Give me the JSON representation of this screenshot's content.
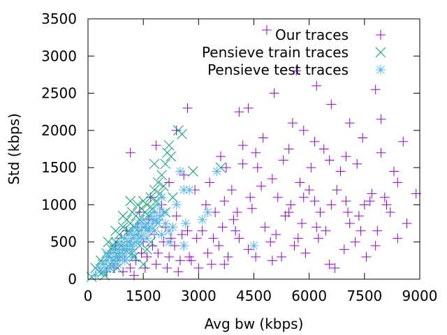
{
  "chart_data": {
    "type": "scatter",
    "xlabel": "Avg bw (kbps)",
    "ylabel": "Std (kbps)",
    "xlim": [
      0,
      9000
    ],
    "ylim": [
      0,
      3500
    ],
    "xticks": [
      0,
      1500,
      3000,
      4500,
      6000,
      7500,
      9000
    ],
    "yticks": [
      0,
      500,
      1000,
      1500,
      2000,
      2500,
      3000,
      3500
    ],
    "xtick_labels": [
      "0",
      "1500",
      "3000",
      "4500",
      "6000",
      "7500",
      "9000"
    ],
    "ytick_labels": [
      "0",
      "500",
      "1000",
      "1500",
      "2000",
      "2500",
      "3000",
      "3500"
    ],
    "grid": false,
    "legend_position": "top-right",
    "series": [
      {
        "name": "Our traces",
        "color": "#9400d3",
        "marker": "plus",
        "points": [
          [
            4850,
            3350
          ],
          [
            5650,
            2800
          ],
          [
            7800,
            2550
          ],
          [
            6200,
            2600
          ],
          [
            5050,
            2500
          ],
          [
            2700,
            2300
          ],
          [
            4100,
            2250
          ],
          [
            4350,
            2300
          ],
          [
            6600,
            2350
          ],
          [
            5550,
            2100
          ],
          [
            5850,
            2000
          ],
          [
            7100,
            2100
          ],
          [
            7950,
            2150
          ],
          [
            8550,
            1850
          ],
          [
            1150,
            1700
          ],
          [
            1850,
            1800
          ],
          [
            2400,
            2000
          ],
          [
            3750,
            1500
          ],
          [
            4200,
            1550
          ],
          [
            4550,
            1700
          ],
          [
            4750,
            1900
          ],
          [
            5300,
            1600
          ],
          [
            6050,
            1500
          ],
          [
            6400,
            1750
          ],
          [
            6850,
            1450
          ],
          [
            7300,
            1550
          ],
          [
            8300,
            1450
          ],
          [
            8900,
            1150
          ],
          [
            3200,
            1000
          ],
          [
            3450,
            900
          ],
          [
            3700,
            1050
          ],
          [
            3950,
            800
          ],
          [
            4450,
            950
          ],
          [
            4800,
            700
          ],
          [
            5150,
            1100
          ],
          [
            5450,
            900
          ],
          [
            5800,
            750
          ],
          [
            6150,
            1050
          ],
          [
            6450,
            650
          ],
          [
            6750,
            1200
          ],
          [
            7050,
            900
          ],
          [
            7350,
            850
          ],
          [
            7650,
            1050
          ],
          [
            7850,
            650
          ],
          [
            8050,
            1100
          ],
          [
            8400,
            550
          ],
          [
            8650,
            750
          ],
          [
            2950,
            550
          ],
          [
            3250,
            350
          ],
          [
            3550,
            450
          ],
          [
            3800,
            300
          ],
          [
            4100,
            550
          ],
          [
            4350,
            400
          ],
          [
            4950,
            500
          ],
          [
            5250,
            300
          ],
          [
            5600,
            450
          ],
          [
            5900,
            350
          ],
          [
            6250,
            550
          ],
          [
            6550,
            200
          ],
          [
            6950,
            400
          ],
          [
            7250,
            500
          ],
          [
            7550,
            300
          ],
          [
            2700,
            650
          ],
          [
            2600,
            450
          ],
          [
            2800,
            250
          ],
          [
            3000,
            150
          ],
          [
            3350,
            200
          ],
          [
            3650,
            700
          ],
          [
            4000,
            650
          ],
          [
            4550,
            300
          ],
          [
            5000,
            250
          ],
          [
            5350,
            850
          ],
          [
            5700,
            550
          ],
          [
            6000,
            1200
          ],
          [
            6300,
            900
          ],
          [
            6700,
            150
          ],
          [
            7100,
            750
          ],
          [
            7500,
            1000
          ],
          [
            7800,
            450
          ],
          [
            8200,
            900
          ],
          [
            600,
            350
          ],
          [
            750,
            450
          ],
          [
            900,
            550
          ],
          [
            1050,
            650
          ],
          [
            1200,
            400
          ],
          [
            1350,
            700
          ],
          [
            1500,
            500
          ],
          [
            1650,
            800
          ],
          [
            1800,
            600
          ],
          [
            1950,
            900
          ],
          [
            2100,
            700
          ],
          [
            2250,
            550
          ],
          [
            2400,
            850
          ],
          [
            2550,
            600
          ],
          [
            800,
            250
          ],
          [
            1000,
            300
          ],
          [
            1150,
            150
          ],
          [
            1300,
            250
          ],
          [
            1450,
            350
          ],
          [
            1600,
            300
          ],
          [
            1750,
            450
          ],
          [
            1900,
            350
          ],
          [
            2050,
            500
          ],
          [
            2200,
            300
          ],
          [
            2350,
            450
          ],
          [
            2500,
            250
          ],
          [
            1400,
            900
          ],
          [
            1700,
            1100
          ],
          [
            2000,
            1000
          ],
          [
            2200,
            1300
          ],
          [
            2600,
            1400
          ],
          [
            2900,
            1200
          ],
          [
            3300,
            1300
          ],
          [
            3600,
            1650
          ],
          [
            3900,
            1200
          ],
          [
            4200,
            1800
          ],
          [
            4600,
            1500
          ],
          [
            5000,
            1350
          ],
          [
            5450,
            1750
          ],
          [
            5750,
            1300
          ],
          [
            6150,
            1850
          ],
          [
            6550,
            1600
          ],
          [
            7000,
            1650
          ],
          [
            7450,
            1900
          ],
          [
            7950,
            1700
          ],
          [
            8400,
            1300
          ],
          [
            500,
            100
          ],
          [
            700,
            150
          ],
          [
            950,
            100
          ],
          [
            1250,
            50
          ],
          [
            1550,
            150
          ],
          [
            1850,
            200
          ],
          [
            2150,
            150
          ],
          [
            2450,
            100
          ],
          [
            2750,
            300
          ],
          [
            3100,
            650
          ],
          [
            3400,
            550
          ],
          [
            3700,
            200
          ],
          [
            4050,
            900
          ],
          [
            4400,
            1100
          ],
          [
            4700,
            1250
          ],
          [
            5100,
            600
          ],
          [
            5500,
            1000
          ],
          [
            5850,
            1100
          ],
          [
            6200,
            700
          ],
          [
            6600,
            1000
          ],
          [
            7000,
            1050
          ],
          [
            7400,
            650
          ],
          [
            7700,
            1150
          ],
          [
            8100,
            1000
          ]
        ]
      },
      {
        "name": "Pensieve train traces",
        "color": "#009e73",
        "marker": "cross",
        "points": [
          [
            100,
            30
          ],
          [
            200,
            150
          ],
          [
            300,
            100
          ],
          [
            400,
            200
          ],
          [
            450,
            50
          ],
          [
            550,
            300
          ],
          [
            600,
            150
          ],
          [
            650,
            400
          ],
          [
            700,
            250
          ],
          [
            750,
            500
          ],
          [
            800,
            350
          ],
          [
            850,
            600
          ],
          [
            900,
            450
          ],
          [
            950,
            700
          ],
          [
            1000,
            550
          ],
          [
            1050,
            800
          ],
          [
            1100,
            650
          ],
          [
            1150,
            750
          ],
          [
            1200,
            900
          ],
          [
            1250,
            700
          ],
          [
            1300,
            850
          ],
          [
            1350,
            1000
          ],
          [
            1400,
            800
          ],
          [
            1450,
            950
          ],
          [
            1500,
            1050
          ],
          [
            1550,
            900
          ],
          [
            1600,
            1000
          ],
          [
            1650,
            850
          ],
          [
            1700,
            1100
          ],
          [
            1750,
            950
          ],
          [
            1800,
            1200
          ],
          [
            1850,
            1050
          ],
          [
            1900,
            1300
          ],
          [
            1950,
            1150
          ],
          [
            2000,
            1400
          ],
          [
            2050,
            1250
          ],
          [
            2100,
            1550
          ],
          [
            2150,
            1700
          ],
          [
            2200,
            1800
          ],
          [
            2250,
            1650
          ],
          [
            2450,
            2000
          ],
          [
            2550,
            1950
          ],
          [
            1800,
            1550
          ],
          [
            2850,
            1450
          ],
          [
            3600,
            1500
          ],
          [
            500,
            350
          ],
          [
            700,
            450
          ],
          [
            900,
            300
          ],
          [
            1100,
            500
          ],
          [
            1300,
            600
          ],
          [
            1500,
            700
          ],
          [
            1700,
            500
          ],
          [
            1900,
            750
          ],
          [
            2100,
            900
          ],
          [
            2300,
            1100
          ],
          [
            1000,
            250
          ],
          [
            1200,
            350
          ],
          [
            1400,
            450
          ],
          [
            1600,
            400
          ],
          [
            1800,
            650
          ],
          [
            400,
            100
          ],
          [
            600,
            200
          ],
          [
            800,
            150
          ],
          [
            1000,
            400
          ],
          [
            1250,
            300
          ],
          [
            1500,
            200
          ],
          [
            350,
            250
          ],
          [
            550,
            500
          ],
          [
            750,
            650
          ],
          [
            950,
            850
          ],
          [
            1150,
            1050
          ]
        ]
      },
      {
        "name": "Pensieve test traces",
        "color": "#56b4e9",
        "marker": "star",
        "points": [
          [
            200,
            50
          ],
          [
            300,
            150
          ],
          [
            400,
            200
          ],
          [
            500,
            250
          ],
          [
            550,
            300
          ],
          [
            600,
            350
          ],
          [
            650,
            250
          ],
          [
            700,
            400
          ],
          [
            750,
            300
          ],
          [
            800,
            450
          ],
          [
            850,
            350
          ],
          [
            900,
            500
          ],
          [
            950,
            400
          ],
          [
            1000,
            550
          ],
          [
            1050,
            450
          ],
          [
            1100,
            600
          ],
          [
            1150,
            500
          ],
          [
            1200,
            650
          ],
          [
            1250,
            550
          ],
          [
            1300,
            700
          ],
          [
            1350,
            600
          ],
          [
            1400,
            750
          ],
          [
            1450,
            650
          ],
          [
            1500,
            800
          ],
          [
            1550,
            700
          ],
          [
            1600,
            750
          ],
          [
            1650,
            650
          ],
          [
            1700,
            850
          ],
          [
            1750,
            750
          ],
          [
            1800,
            900
          ],
          [
            1850,
            800
          ],
          [
            1900,
            1000
          ],
          [
            1950,
            850
          ],
          [
            2000,
            1100
          ],
          [
            2050,
            900
          ],
          [
            2100,
            750
          ],
          [
            2200,
            650
          ],
          [
            2300,
            700
          ],
          [
            2400,
            1000
          ],
          [
            2500,
            1450
          ],
          [
            2600,
            1200
          ],
          [
            2650,
            750
          ],
          [
            2750,
            1200
          ],
          [
            3100,
            800
          ],
          [
            3250,
            900
          ],
          [
            3500,
            1450
          ],
          [
            4500,
            450
          ],
          [
            1000,
            300
          ],
          [
            1200,
            400
          ],
          [
            1400,
            500
          ],
          [
            1600,
            550
          ],
          [
            1800,
            650
          ],
          [
            2000,
            600
          ],
          [
            2200,
            500
          ],
          [
            2600,
            450
          ],
          [
            600,
            150
          ],
          [
            800,
            200
          ],
          [
            1000,
            250
          ],
          [
            1200,
            300
          ],
          [
            450,
            100
          ],
          [
            650,
            180
          ],
          [
            850,
            280
          ],
          [
            1050,
            380
          ],
          [
            1250,
            480
          ],
          [
            1450,
            580
          ],
          [
            1650,
            680
          ],
          [
            1850,
            780
          ]
        ]
      }
    ]
  }
}
